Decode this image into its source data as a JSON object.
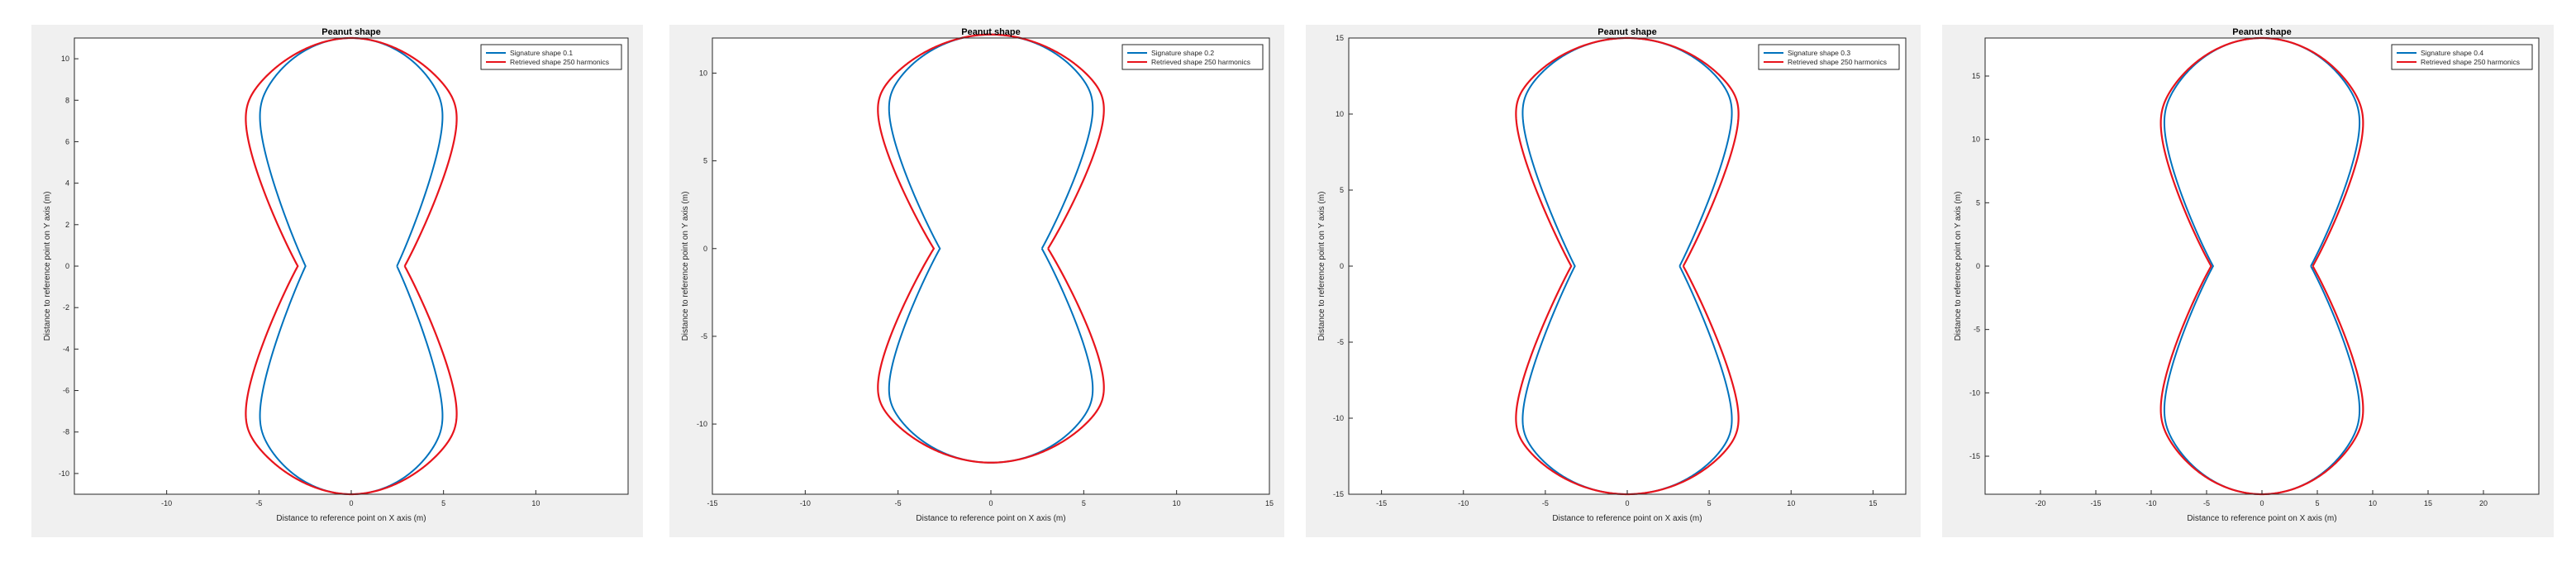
{
  "chart_data": [
    {
      "type": "line",
      "title": "Peanut shape",
      "xlabel": "Distance to reference point on X axis (m)",
      "ylabel": "Distance to reference point on Y axis (m)",
      "xlim": [
        -15,
        15
      ],
      "ylim": [
        -11,
        11
      ],
      "xticks": [
        -10,
        -5,
        0,
        5,
        10
      ],
      "yticks": [
        -10,
        -8,
        -6,
        -4,
        -2,
        0,
        2,
        4,
        6,
        8,
        10
      ],
      "grid": false,
      "legend_position": "top-right",
      "shape": {
        "radius": 5.5,
        "center_offset": 5.5,
        "center_x": 0
      },
      "red_expansion": 1.17,
      "series": [
        {
          "name": "Signature shape 0.1",
          "color": "#0072BD"
        },
        {
          "name": "Retrieved shape 250 harmonics",
          "color": "#E8141C"
        }
      ]
    },
    {
      "type": "line",
      "title": "Peanut shape",
      "xlabel": "Distance to reference point on X axis (m)",
      "ylabel": "Distance to reference point on Y axis (m)",
      "xlim": [
        -15,
        15
      ],
      "ylim": [
        -14,
        12
      ],
      "xticks": [
        -15,
        -10,
        -5,
        0,
        5,
        10,
        15
      ],
      "yticks": [
        -10,
        -5,
        0,
        5,
        10
      ],
      "grid": false,
      "legend_position": "top-right",
      "shape": {
        "radius": 6.1,
        "center_offset": 6.1,
        "center_x": 0
      },
      "red_expansion": 1.12,
      "series": [
        {
          "name": "Signature shape 0.2",
          "color": "#0072BD"
        },
        {
          "name": "Retrieved shape 250 harmonics",
          "color": "#E8141C"
        }
      ]
    },
    {
      "type": "line",
      "title": "Peanut shape",
      "xlabel": "Distance to reference point on X axis (m)",
      "ylabel": "Distance to reference point on Y axis (m)",
      "xlim": [
        -17,
        17
      ],
      "ylim": [
        -15,
        15
      ],
      "xticks": [
        -15,
        -10,
        -5,
        0,
        5,
        10,
        15
      ],
      "yticks": [
        -15,
        -10,
        -5,
        0,
        5,
        10,
        15
      ],
      "grid": false,
      "legend_position": "top-right",
      "shape": {
        "radius": 7.1,
        "center_offset": 7.9,
        "center_x": 0
      },
      "red_expansion": 1.07,
      "series": [
        {
          "name": "Signature shape 0.3",
          "color": "#0072BD"
        },
        {
          "name": "Retrieved shape 250 harmonics",
          "color": "#E8141C"
        }
      ]
    },
    {
      "type": "line",
      "title": "Peanut shape",
      "xlabel": "Distance to reference point on X axis (m)",
      "ylabel": "Distance to reference point on Y axis (m)",
      "xlim": [
        -25,
        25
      ],
      "ylim": [
        -18,
        18
      ],
      "xticks": [
        -20,
        -15,
        -10,
        -5,
        0,
        5,
        10,
        15,
        20
      ],
      "yticks": [
        -15,
        -10,
        -5,
        0,
        5,
        10,
        15
      ],
      "grid": false,
      "legend_position": "top-right",
      "shape": {
        "radius": 9.8,
        "center_offset": 8.2,
        "center_x": 0
      },
      "red_expansion": 1.04,
      "series": [
        {
          "name": "Signature shape 0.4",
          "color": "#0072BD"
        },
        {
          "name": "Retrieved shape 250 harmonics",
          "color": "#E8141C"
        }
      ]
    }
  ]
}
